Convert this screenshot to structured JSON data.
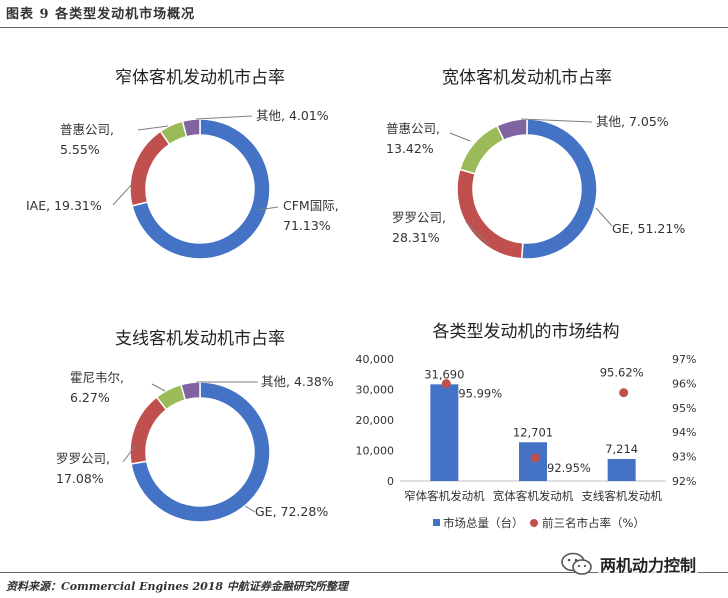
{
  "figure_title": "图表 9 各类型发动机市场概况",
  "source": "资料来源：Commercial Engines 2018 中航证券金融研究所整理",
  "watermark": "两机动力控制",
  "colors": {
    "blue": "#4472C4",
    "red": "#C0504D",
    "green": "#9BBB59",
    "purple": "#8064A2"
  },
  "chart_data": [
    {
      "type": "pie",
      "title": "窄体客机发动机市占率",
      "slices": [
        {
          "label_lines": [
            "CFM国际,",
            "71.13%"
          ],
          "value": 71.13,
          "color": "#4472C4"
        },
        {
          "label_lines": [
            "IAE, 19.31%"
          ],
          "value": 19.31,
          "color": "#C0504D"
        },
        {
          "label_lines": [
            "普惠公司,",
            "5.55%"
          ],
          "value": 5.55,
          "color": "#9BBB59"
        },
        {
          "label_lines": [
            "其他, 4.01%"
          ],
          "value": 4.01,
          "color": "#8064A2"
        }
      ]
    },
    {
      "type": "pie",
      "title": "宽体客机发动机市占率",
      "slices": [
        {
          "label_lines": [
            "GE, 51.21%"
          ],
          "value": 51.21,
          "color": "#4472C4"
        },
        {
          "label_lines": [
            "罗罗公司,",
            "28.31%"
          ],
          "value": 28.31,
          "color": "#C0504D"
        },
        {
          "label_lines": [
            "普惠公司,",
            "13.42%"
          ],
          "value": 13.42,
          "color": "#9BBB59"
        },
        {
          "label_lines": [
            "其他, 7.05%"
          ],
          "value": 7.05,
          "color": "#8064A2"
        }
      ]
    },
    {
      "type": "pie",
      "title": "支线客机发动机市占率",
      "slices": [
        {
          "label_lines": [
            "GE, 72.28%"
          ],
          "value": 72.28,
          "color": "#4472C4"
        },
        {
          "label_lines": [
            "罗罗公司,",
            "17.08%"
          ],
          "value": 17.08,
          "color": "#C0504D"
        },
        {
          "label_lines": [
            "霍尼韦尔,",
            "6.27%"
          ],
          "value": 6.27,
          "color": "#9BBB59"
        },
        {
          "label_lines": [
            "其他, 4.38%"
          ],
          "value": 4.38,
          "color": "#8064A2"
        }
      ]
    },
    {
      "type": "bar",
      "title": "各类型发动机的市场结构",
      "categories": [
        "窄体客机发动机",
        "宽体客机发动机",
        "支线客机发动机"
      ],
      "series": [
        {
          "name": "市场总量（台）",
          "kind": "bar",
          "axis": "left",
          "values": [
            31690,
            12701,
            7214
          ],
          "labels": [
            "31,690",
            "12,701",
            "7,214"
          ],
          "color": "#4472C4"
        },
        {
          "name": "前三名市占率（%）",
          "kind": "scatter",
          "axis": "right",
          "values": [
            95.99,
            92.95,
            95.62
          ],
          "labels": [
            "95.99%",
            "92.95%",
            "95.62%"
          ],
          "color": "#C0504D"
        }
      ],
      "ylim": [
        0,
        40000
      ],
      "yticks": [
        "0",
        "10,000",
        "20,000",
        "30,000",
        "40,000"
      ],
      "y2lim": [
        92,
        97
      ],
      "y2ticks": [
        "92%",
        "93%",
        "94%",
        "95%",
        "96%",
        "97%"
      ],
      "legend": "bottom"
    }
  ]
}
